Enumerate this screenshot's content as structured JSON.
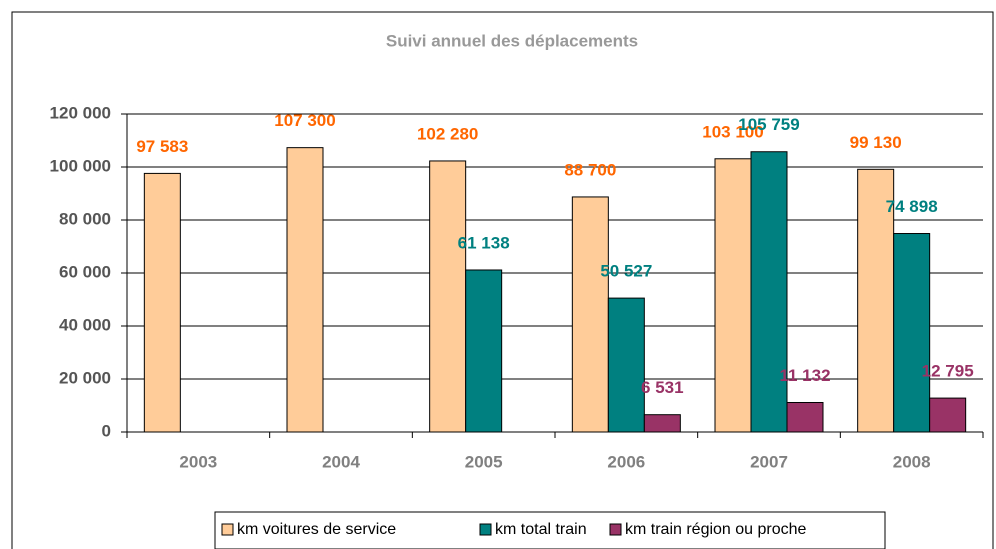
{
  "chart_data": {
    "type": "bar",
    "title": "Suivi annuel des déplacements",
    "categories": [
      "2003",
      "2004",
      "2005",
      "2006",
      "2007",
      "2008"
    ],
    "series": [
      {
        "name": "km voitures de service",
        "color": "#ffcc99",
        "label_color": "#ff6600",
        "values": [
          97583,
          107300,
          102280,
          88700,
          103100,
          99130
        ],
        "value_labels": [
          "97 583",
          "107 300",
          "102 280",
          "88 700",
          "103 100",
          "99 130"
        ]
      },
      {
        "name": "km total train",
        "color": "#008080",
        "label_color": "#008080",
        "values": [
          null,
          null,
          61138,
          50527,
          105759,
          74898
        ],
        "value_labels": [
          null,
          null,
          "61 138",
          "50 527",
          "105 759",
          "74 898"
        ]
      },
      {
        "name": "km train région ou proche",
        "color": "#993366",
        "label_color": "#993366",
        "values": [
          null,
          null,
          null,
          6531,
          11132,
          12795
        ],
        "value_labels": [
          null,
          null,
          null,
          "6 531",
          "11 132",
          "12 795"
        ]
      }
    ],
    "ylim": [
      0,
      120000
    ],
    "yticks": [
      0,
      {
        "value": 20000,
        "label": "20 000"
      },
      {
        "value": 40000,
        "label": "40 000"
      },
      {
        "value": 60000,
        "label": "60 000"
      },
      {
        "value": 80000,
        "label": "80 000"
      },
      {
        "value": 100000,
        "label": "100 000"
      },
      {
        "value": 120000,
        "label": "120 000"
      }
    ],
    "grid": true,
    "legend": "bottom"
  }
}
